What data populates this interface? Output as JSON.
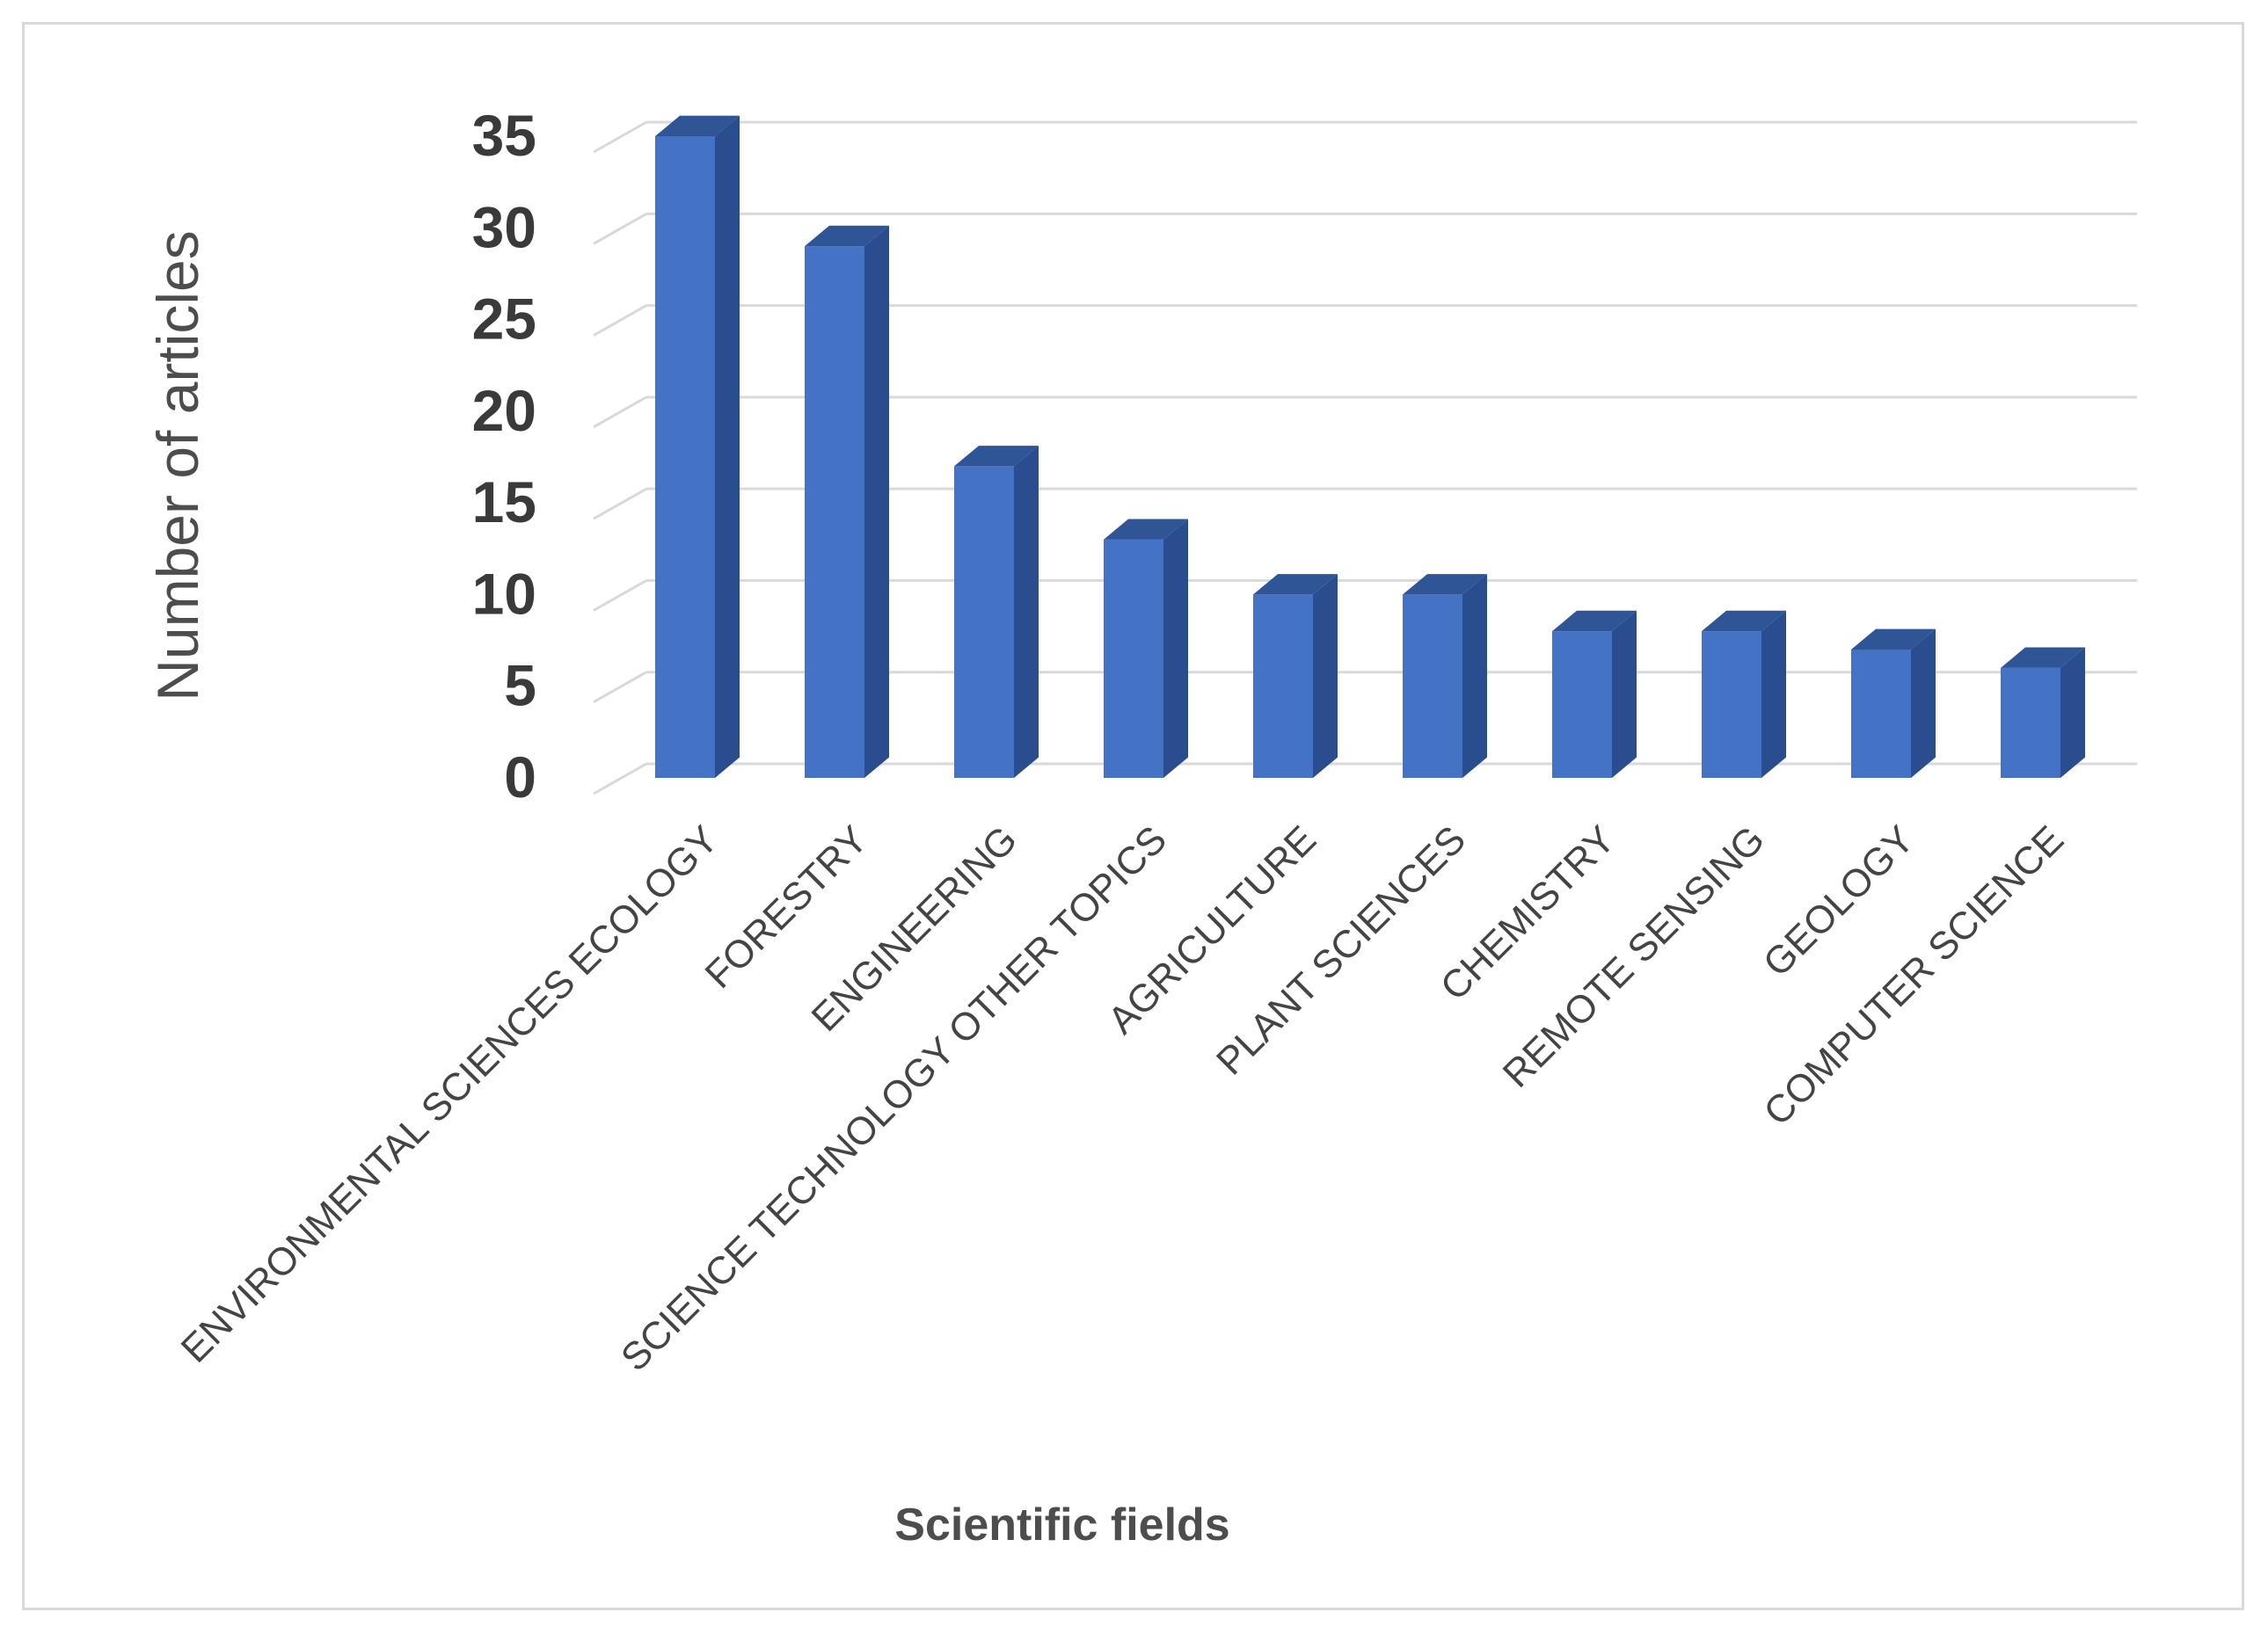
{
  "chart_data": {
    "type": "bar",
    "style": "3d-column",
    "categories": [
      "ENVIRONMENTAL SCIENCES ECOLOGY",
      "FORESTRY",
      "ENGINEERING",
      "SCIENCE TECHNOLOGY OTHER TOPICS",
      "AGRICULTURE",
      "PLANT SCIENCES",
      "CHEMISTRY",
      "REMOTE SENSING",
      "GEOLOGY",
      "COMPUTER SCIENCE"
    ],
    "values": [
      35,
      29,
      17,
      13,
      10,
      10,
      8,
      8,
      7,
      6
    ],
    "xlabel": "Scientific fields",
    "ylabel": "Number of articles",
    "ylim": [
      0,
      35
    ],
    "yticks": [
      "0",
      "5",
      "10",
      "15",
      "20",
      "25",
      "30",
      "35"
    ],
    "grid": true,
    "legend": "none",
    "colors": {
      "bar_front": "#4472c4",
      "bar_side": "#2a4d8f",
      "bar_top": "#2f5597",
      "grid": "#d9d9d9"
    }
  }
}
